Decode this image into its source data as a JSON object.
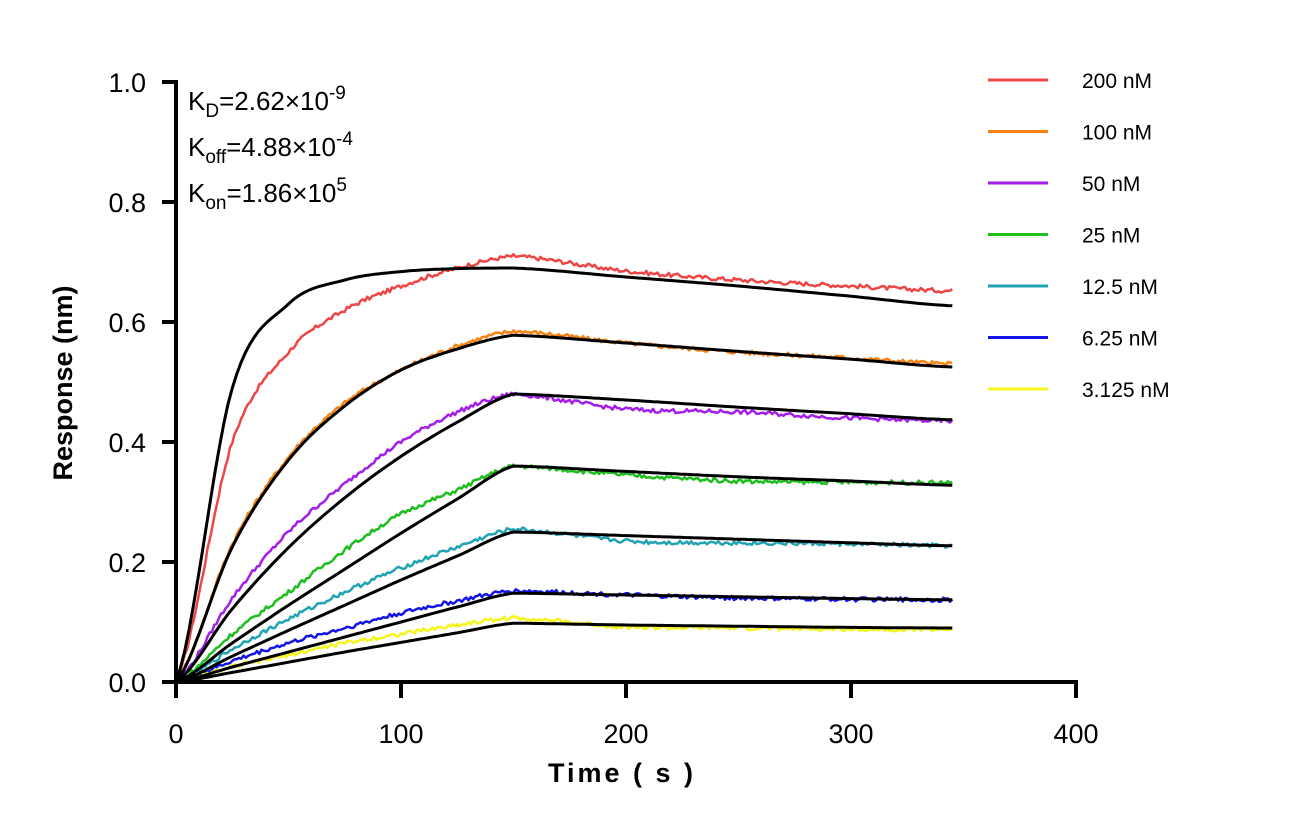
{
  "chart_data": {
    "type": "line",
    "xlabel": "Time ( s )",
    "ylabel": "Response (nm)",
    "xlim": [
      0,
      400
    ],
    "ylim": [
      0,
      1.0
    ],
    "x_ticks": [
      "0",
      "100",
      "200",
      "300",
      "400"
    ],
    "y_ticks": [
      "0.0",
      "0.2",
      "0.4",
      "0.6",
      "0.8",
      "1.0"
    ],
    "grid": false,
    "legend_position": "top-right",
    "annotations": [
      {
        "base": "K",
        "sub": "D",
        "text": "=2.62×10",
        "sup": "-9"
      },
      {
        "base": "K",
        "sub": "off",
        "text": "=4.88×10",
        "sup": "-4"
      },
      {
        "base": "K",
        "sub": "on",
        "text": "=1.86×10",
        "sup": "5"
      }
    ],
    "x": [
      0,
      25,
      50,
      75,
      100,
      125,
      150,
      200,
      250,
      300,
      345
    ],
    "fit_color": "#000000",
    "series": [
      {
        "name": "200 nM",
        "color": "#EE4545",
        "values": [
          0,
          0.4,
          0.55,
          0.62,
          0.66,
          0.69,
          0.71,
          0.685,
          0.67,
          0.66,
          0.652
        ],
        "fit": [
          0,
          0.49,
          0.63,
          0.67,
          0.684,
          0.689,
          0.69,
          0.675,
          0.66,
          0.643,
          0.627
        ]
      },
      {
        "name": "100 nM",
        "color": "#F7820F",
        "values": [
          0,
          0.23,
          0.375,
          0.465,
          0.52,
          0.56,
          0.585,
          0.565,
          0.55,
          0.54,
          0.53
        ],
        "fit": [
          0,
          0.225,
          0.37,
          0.46,
          0.52,
          0.555,
          0.578,
          0.565,
          0.551,
          0.538,
          0.525
        ]
      },
      {
        "name": "50 nM",
        "color": "#A41EEB",
        "values": [
          0,
          0.14,
          0.25,
          0.33,
          0.4,
          0.45,
          0.48,
          0.455,
          0.45,
          0.44,
          0.435
        ],
        "fit": [
          0,
          0.122,
          0.224,
          0.307,
          0.376,
          0.433,
          0.48,
          0.47,
          0.458,
          0.447,
          0.437
        ]
      },
      {
        "name": "25 nM",
        "color": "#1DBE1D",
        "values": [
          0,
          0.08,
          0.15,
          0.22,
          0.28,
          0.32,
          0.36,
          0.345,
          0.335,
          0.333,
          0.332
        ],
        "fit": [
          0,
          0.065,
          0.128,
          0.188,
          0.248,
          0.305,
          0.36,
          0.351,
          0.342,
          0.335,
          0.328
        ]
      },
      {
        "name": "12.5 nM",
        "color": "#21A3B3",
        "values": [
          0,
          0.055,
          0.105,
          0.15,
          0.19,
          0.225,
          0.255,
          0.235,
          0.232,
          0.23,
          0.227
        ],
        "fit": [
          0,
          0.043,
          0.086,
          0.128,
          0.17,
          0.21,
          0.25,
          0.244,
          0.238,
          0.232,
          0.227
        ]
      },
      {
        "name": "6.25 nM",
        "color": "#1414E6",
        "values": [
          0,
          0.035,
          0.065,
          0.09,
          0.115,
          0.135,
          0.152,
          0.145,
          0.14,
          0.138,
          0.137
        ],
        "fit": [
          0,
          0.025,
          0.05,
          0.075,
          0.1,
          0.125,
          0.148,
          0.145,
          0.142,
          0.139,
          0.137
        ]
      },
      {
        "name": "3.125 nM",
        "color": "#F5F51E",
        "values": [
          0,
          0.025,
          0.045,
          0.065,
          0.08,
          0.095,
          0.107,
          0.092,
          0.09,
          0.088,
          0.088
        ],
        "fit": [
          0,
          0.016,
          0.033,
          0.05,
          0.066,
          0.082,
          0.098,
          0.095,
          0.093,
          0.091,
          0.09
        ]
      }
    ]
  }
}
